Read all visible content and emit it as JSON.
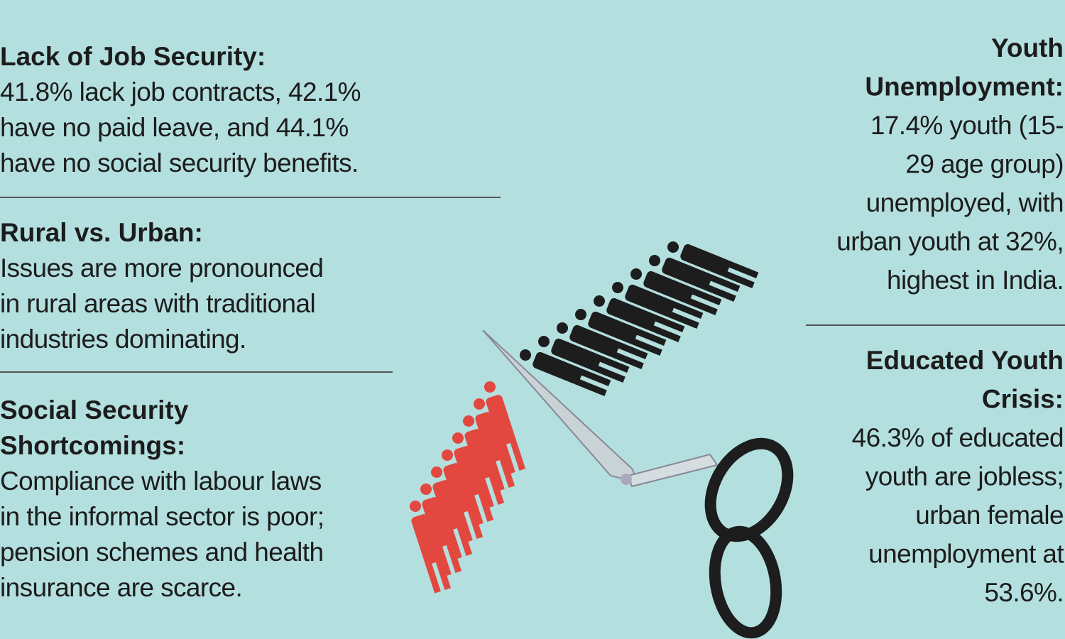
{
  "left": [
    {
      "heading": [
        "Lack of Job Security:"
      ],
      "body": [
        "41.8% lack job contracts, 42.1%",
        "have no paid leave, and 44.1%",
        "have no social security benefits."
      ]
    },
    {
      "heading": [
        "Rural vs. Urban:"
      ],
      "body": [
        "Issues are more pronounced",
        "in rural areas with traditional",
        "industries dominating."
      ]
    },
    {
      "heading": [
        "Social Security",
        "Shortcomings:"
      ],
      "body": [
        "Compliance with labour laws",
        "in the informal sector is poor;",
        "pension schemes and health",
        "insurance are scarce."
      ]
    }
  ],
  "right": [
    {
      "heading": [
        "Youth",
        "Unemployment:"
      ],
      "body": [
        "17.4% youth (15-",
        "29 age group)",
        "unemployed, with",
        "urban youth at 32%,",
        "highest in India."
      ]
    },
    {
      "heading": [
        "Educated Youth",
        "Crisis:"
      ],
      "body": [
        "46.3% of educated",
        "youth are jobless;",
        "urban female",
        "unemployment at",
        "53.6%."
      ]
    }
  ]
}
